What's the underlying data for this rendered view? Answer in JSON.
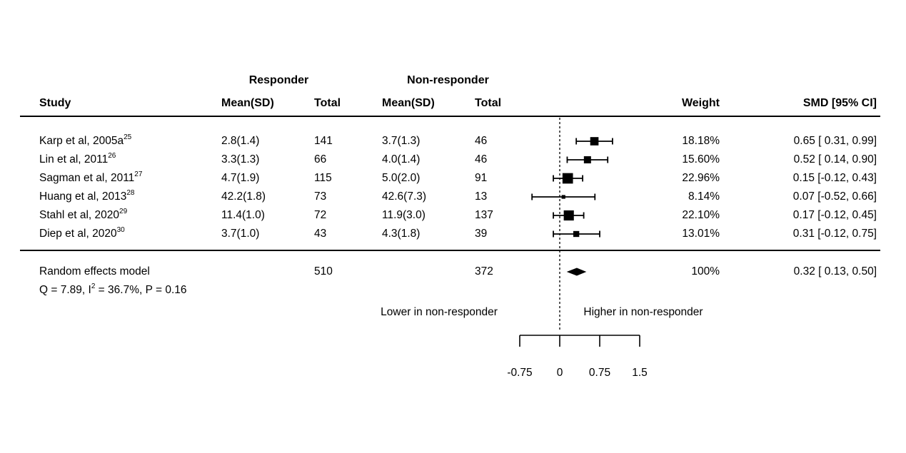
{
  "table": {
    "header": {
      "study": "Study",
      "group_responder": "Responder",
      "group_nonresponder": "Non-responder",
      "mean_sd_1": "Mean(SD)",
      "total_1": "Total",
      "mean_sd_2": "Mean(SD)",
      "total_2": "Total",
      "weight": "Weight",
      "smd": "SMD [95% CI]"
    },
    "rows": [
      {
        "study": "Karp et al, 2005a",
        "ref": "25",
        "mean1": "2.8(1.4)",
        "total1": "141",
        "mean2": "3.7(1.3)",
        "total2": "46",
        "weight": "18.18%",
        "smd": "0.65 [ 0.31, 0.99]"
      },
      {
        "study": "Lin et al, 2011",
        "ref": "26",
        "mean1": "3.3(1.3)",
        "total1": "66",
        "mean2": "4.0(1.4)",
        "total2": "46",
        "weight": "15.60%",
        "smd": "0.52 [ 0.14, 0.90]"
      },
      {
        "study": "Sagman et al, 2011",
        "ref": "27",
        "mean1": "4.7(1.9)",
        "total1": "115",
        "mean2": "5.0(2.0)",
        "total2": "91",
        "weight": "22.96%",
        "smd": "0.15 [-0.12, 0.43]"
      },
      {
        "study": "Huang et al, 2013",
        "ref": "28",
        "mean1": "42.2(1.8)",
        "total1": "73",
        "mean2": "42.6(7.3)",
        "total2": "13",
        "weight": "8.14%",
        "smd": "0.07 [-0.52, 0.66]"
      },
      {
        "study": "Stahl et al, 2020",
        "ref": "29",
        "mean1": "11.4(1.0)",
        "total1": "72",
        "mean2": "11.9(3.0)",
        "total2": "137",
        "weight": "22.10%",
        "smd": "0.17 [-0.12, 0.45]"
      },
      {
        "study": "Diep et al, 2020",
        "ref": "30",
        "mean1": "3.7(1.0)",
        "total1": "43",
        "mean2": "4.3(1.8)",
        "total2": "39",
        "weight": "13.01%",
        "smd": "0.31 [-0.12, 0.75]"
      }
    ],
    "summary_row": {
      "label": "Random effects model",
      "total1": "510",
      "total2": "372",
      "weight": "100%",
      "smd": "0.32 [ 0.13, 0.50]"
    },
    "heterogeneity": {
      "pre": "Q = 7.89, I",
      "sup": "2",
      "post": " = 36.7%, P = 0.16"
    }
  },
  "chart_data": {
    "type": "forest",
    "title": "",
    "xlabel_left": "Lower in non-responder",
    "xlabel_right": "Higher in non-responder",
    "axis_ticks": [
      -0.75,
      0,
      0.75,
      1.5
    ],
    "axis_range": [
      -0.75,
      1.5
    ],
    "zero_line": 0,
    "marker_color": "#000000",
    "studies": [
      {
        "label": "Karp et al, 2005a",
        "est": 0.65,
        "lo": 0.31,
        "hi": 0.99,
        "weight_pct": 18.18
      },
      {
        "label": "Lin et al, 2011",
        "est": 0.52,
        "lo": 0.14,
        "hi": 0.9,
        "weight_pct": 15.6
      },
      {
        "label": "Sagman et al, 2011",
        "est": 0.15,
        "lo": -0.12,
        "hi": 0.43,
        "weight_pct": 22.96
      },
      {
        "label": "Huang et al, 2013",
        "est": 0.07,
        "lo": -0.52,
        "hi": 0.66,
        "weight_pct": 8.14
      },
      {
        "label": "Stahl et al, 2020",
        "est": 0.17,
        "lo": -0.12,
        "hi": 0.45,
        "weight_pct": 22.1
      },
      {
        "label": "Diep et al, 2020",
        "est": 0.31,
        "lo": -0.12,
        "hi": 0.75,
        "weight_pct": 13.01
      }
    ],
    "summary": {
      "label": "Random effects model",
      "est": 0.32,
      "lo": 0.13,
      "hi": 0.5,
      "weight_pct": 100
    }
  }
}
